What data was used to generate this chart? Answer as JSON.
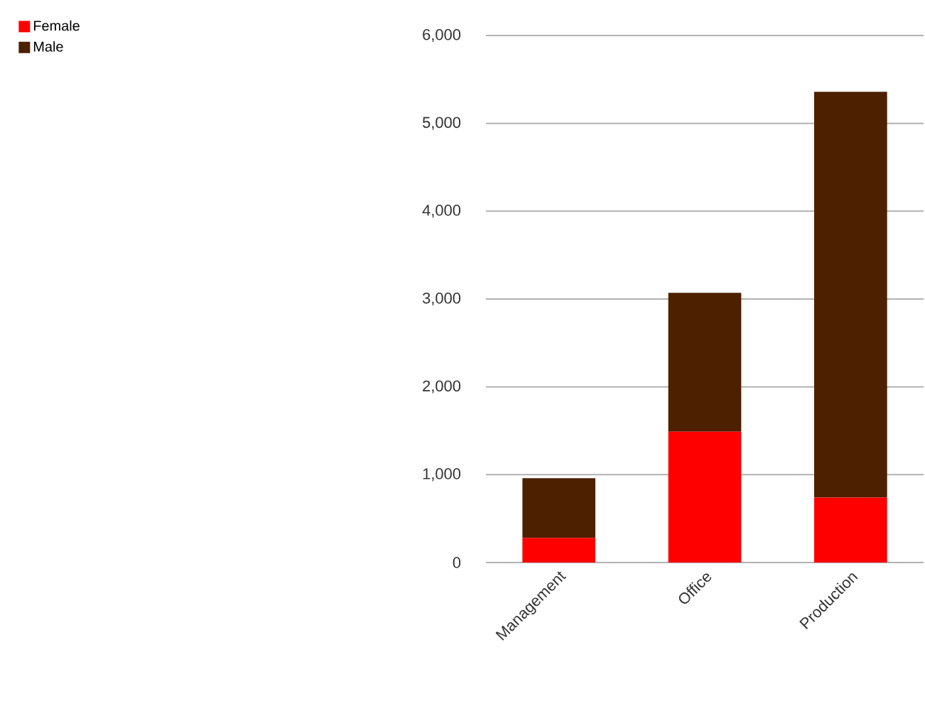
{
  "chart_data": {
    "type": "bar",
    "stacked": true,
    "categories": [
      "Management",
      "Office",
      "Production"
    ],
    "series": [
      {
        "name": "Female",
        "color": "#ff0000",
        "values": [
          280,
          1490,
          740
        ]
      },
      {
        "name": "Male",
        "color": "#4d2000",
        "values": [
          680,
          1580,
          4620
        ]
      }
    ],
    "ylim": [
      0,
      6000
    ],
    "yticks": [
      0,
      {
        "value": 1000,
        "label": "1,000"
      },
      {
        "value": 2000,
        "label": "2,000"
      },
      {
        "value": 3000,
        "label": "3,000"
      },
      {
        "value": 4000,
        "label": "4,000"
      },
      {
        "value": 5000,
        "label": "5,000"
      },
      {
        "value": 6000,
        "label": "6,000"
      }
    ],
    "grid": "y",
    "legend": "top left"
  }
}
